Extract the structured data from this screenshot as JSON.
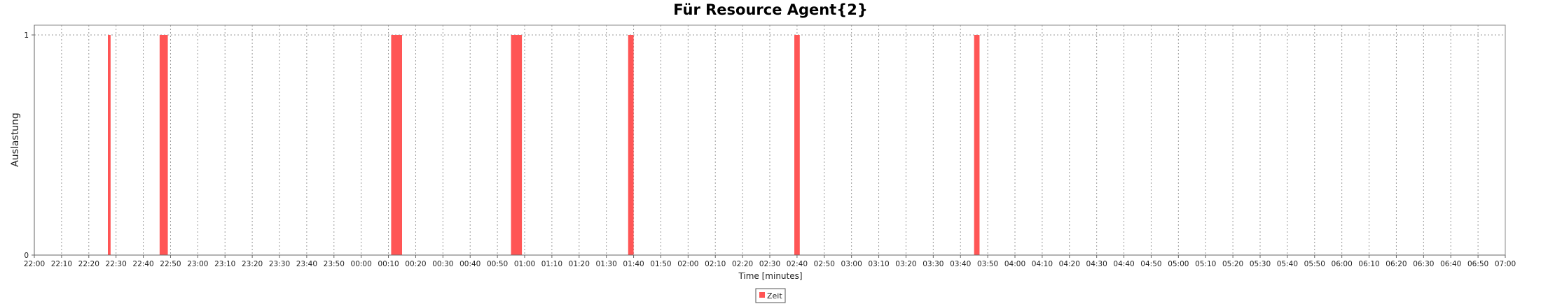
{
  "chart_data": {
    "type": "bar",
    "title": "Für Resource Agent{2}",
    "xlabel": "Time [minutes]",
    "ylabel": "Auslastung",
    "ylim": [
      0,
      1
    ],
    "y_ticks": [
      "0",
      "1"
    ],
    "x_ticks": [
      "22:00",
      "22:10",
      "22:20",
      "22:30",
      "22:40",
      "22:50",
      "23:00",
      "23:10",
      "23:20",
      "23:30",
      "23:40",
      "23:50",
      "00:00",
      "00:10",
      "00:20",
      "00:30",
      "00:40",
      "00:50",
      "01:00",
      "01:10",
      "01:20",
      "01:30",
      "01:40",
      "01:50",
      "02:00",
      "02:10",
      "02:20",
      "02:30",
      "02:40",
      "02:50",
      "03:00",
      "03:10",
      "03:20",
      "03:30",
      "03:40",
      "03:50",
      "04:00",
      "04:10",
      "04:20",
      "04:30",
      "04:40",
      "04:50",
      "05:00",
      "05:10",
      "05:20",
      "05:30",
      "05:40",
      "05:50",
      "06:00",
      "06:10",
      "06:20",
      "06:30",
      "06:40",
      "06:50",
      "07:00"
    ],
    "x_range": [
      "22:00",
      "07:00"
    ],
    "grid": true,
    "legend_position": "bottom",
    "series": [
      {
        "name": "Zeit",
        "color": "#ff5555",
        "bars": [
          {
            "start": "22:27",
            "end": "22:28",
            "value": 1
          },
          {
            "start": "22:46",
            "end": "22:49",
            "value": 1
          },
          {
            "start": "00:11",
            "end": "00:15",
            "value": 1
          },
          {
            "start": "00:55",
            "end": "00:59",
            "value": 1
          },
          {
            "start": "01:38",
            "end": "01:40",
            "value": 1
          },
          {
            "start": "02:39",
            "end": "02:41",
            "value": 1
          },
          {
            "start": "03:45",
            "end": "03:47",
            "value": 1
          }
        ]
      }
    ]
  }
}
